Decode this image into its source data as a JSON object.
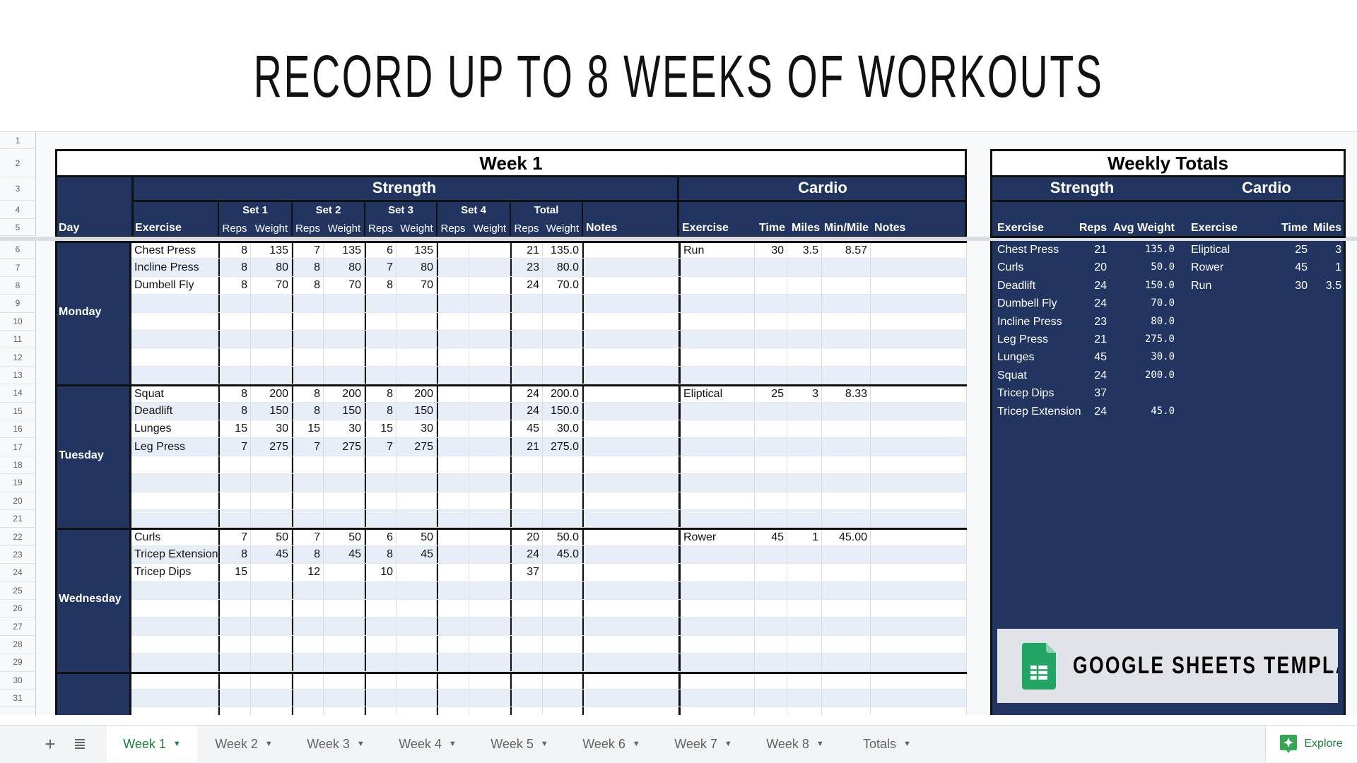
{
  "banner": {
    "title": "RECORD UP TO 8 WEEKS OF WORKOUTS",
    "template_label": "GOOGLE SHEETS TEMPLATE"
  },
  "colors": {
    "navy": "#213560",
    "alt_row": "#e8eef8",
    "accent_green": "#188038"
  },
  "row_numbers": [
    "1",
    "2",
    "3",
    "4",
    "5",
    "6",
    "7",
    "8",
    "9",
    "10",
    "11",
    "12",
    "13",
    "14",
    "15",
    "16",
    "17",
    "18",
    "19",
    "20",
    "21",
    "22",
    "23",
    "24",
    "25",
    "26",
    "27",
    "28",
    "29",
    "30",
    "31"
  ],
  "week": {
    "title": "Week 1",
    "strength_label": "Strength",
    "cardio_label": "Cardio",
    "day_header": "Day",
    "exercise_header": "Exercise",
    "set_labels": [
      "Set 1",
      "Set 2",
      "Set 3",
      "Set 4",
      "Total"
    ],
    "sub_reps": "Reps",
    "sub_weight": "Weight",
    "notes_header": "Notes",
    "cardio_headers": [
      "Exercise",
      "Time",
      "Miles",
      "Min/Mile",
      "Notes"
    ],
    "days": [
      {
        "name": "Monday",
        "strength": [
          [
            "Chest Press",
            "8",
            "135",
            "7",
            "135",
            "6",
            "135",
            "",
            "",
            "21",
            "135.0",
            ""
          ],
          [
            "Incline Press",
            "8",
            "80",
            "8",
            "80",
            "7",
            "80",
            "",
            "",
            "23",
            "80.0",
            ""
          ],
          [
            "Dumbell Fly",
            "8",
            "70",
            "8",
            "70",
            "8",
            "70",
            "",
            "",
            "24",
            "70.0",
            ""
          ]
        ],
        "cardio": [
          [
            "Run",
            "30",
            "3.5",
            "8.57",
            ""
          ]
        ]
      },
      {
        "name": "Tuesday",
        "strength": [
          [
            "Squat",
            "8",
            "200",
            "8",
            "200",
            "8",
            "200",
            "",
            "",
            "24",
            "200.0",
            ""
          ],
          [
            "Deadlift",
            "8",
            "150",
            "8",
            "150",
            "8",
            "150",
            "",
            "",
            "24",
            "150.0",
            ""
          ],
          [
            "Lunges",
            "15",
            "30",
            "15",
            "30",
            "15",
            "30",
            "",
            "",
            "45",
            "30.0",
            ""
          ],
          [
            "Leg Press",
            "7",
            "275",
            "7",
            "275",
            "7",
            "275",
            "",
            "",
            "21",
            "275.0",
            ""
          ]
        ],
        "cardio": [
          [
            "Eliptical",
            "25",
            "3",
            "8.33",
            ""
          ]
        ]
      },
      {
        "name": "Wednesday",
        "strength": [
          [
            "Curls",
            "7",
            "50",
            "7",
            "50",
            "6",
            "50",
            "",
            "",
            "20",
            "50.0",
            ""
          ],
          [
            "Tricep Extension",
            "8",
            "45",
            "8",
            "45",
            "8",
            "45",
            "",
            "",
            "24",
            "45.0",
            ""
          ],
          [
            "Tricep Dips",
            "15",
            "",
            "12",
            "",
            "10",
            "",
            "",
            "",
            "37",
            "",
            ""
          ]
        ],
        "cardio": [
          [
            "Rower",
            "45",
            "1",
            "45.00",
            ""
          ]
        ]
      },
      {
        "name": "",
        "strength": [],
        "cardio": []
      }
    ]
  },
  "totals": {
    "title": "Weekly Totals",
    "strength_label": "Strength",
    "cardio_label": "Cardio",
    "strength_headers": [
      "Exercise",
      "Reps",
      "Avg Weight"
    ],
    "cardio_headers": [
      "Exercise",
      "Time",
      "Miles"
    ],
    "strength": [
      [
        "Chest Press",
        "21",
        "135.0"
      ],
      [
        "Curls",
        "20",
        "50.0"
      ],
      [
        "Deadlift",
        "24",
        "150.0"
      ],
      [
        "Dumbell Fly",
        "24",
        "70.0"
      ],
      [
        "Incline Press",
        "23",
        "80.0"
      ],
      [
        "Leg Press",
        "21",
        "275.0"
      ],
      [
        "Lunges",
        "45",
        "30.0"
      ],
      [
        "Squat",
        "24",
        "200.0"
      ],
      [
        "Tricep Dips",
        "37",
        ""
      ],
      [
        "Tricep Extension",
        "24",
        "45.0"
      ]
    ],
    "cardio": [
      [
        "Eliptical",
        "25",
        "3"
      ],
      [
        "Rower",
        "45",
        "1"
      ],
      [
        "Run",
        "30",
        "3.5"
      ]
    ]
  },
  "tabs": [
    {
      "label": "Week 1",
      "active": true
    },
    {
      "label": "Week 2"
    },
    {
      "label": "Week 3"
    },
    {
      "label": "Week 4"
    },
    {
      "label": "Week 5"
    },
    {
      "label": "Week 6"
    },
    {
      "label": "Week 7"
    },
    {
      "label": "Week 8"
    },
    {
      "label": "Totals"
    }
  ],
  "explore_label": "Explore"
}
